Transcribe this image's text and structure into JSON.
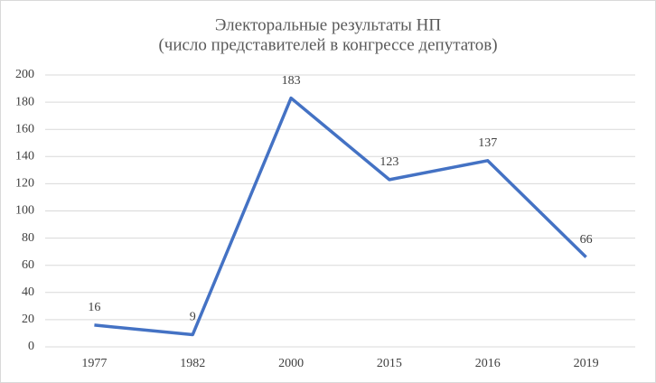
{
  "chart_data": {
    "type": "line",
    "title": "Электоральные результаты НП",
    "subtitle": "(число представителей в конгрессе депутатов)",
    "categories": [
      "1977",
      "1982",
      "2000",
      "2015",
      "2016",
      "2019"
    ],
    "series": [
      {
        "name": "НП",
        "color": "#4472c4",
        "values": [
          16,
          9,
          183,
          123,
          137,
          66
        ]
      }
    ],
    "ylim": [
      0,
      200
    ],
    "yticks": [
      0,
      20,
      40,
      60,
      80,
      100,
      120,
      140,
      160,
      180,
      200
    ],
    "grid": true,
    "data_labels": true
  }
}
